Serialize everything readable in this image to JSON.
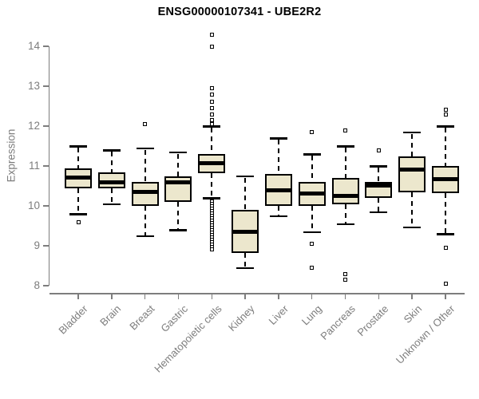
{
  "figure": {
    "kind": "boxplot"
  },
  "chart_data": {
    "type": "box",
    "title": "ENSG00000107341 - UBE2R2",
    "xlabel": "",
    "ylabel": "Expression",
    "ylim": [
      8,
      14.5
    ],
    "yticks": [
      8,
      9,
      10,
      11,
      12,
      13,
      14
    ],
    "grid": false,
    "legend": "none",
    "box_fill": "#ECE7CD",
    "box_stroke": "#000000",
    "axis_color": "#7d7d7d",
    "title_color": "#000000",
    "categories": [
      "Bladder",
      "Brain",
      "Breast",
      "Gastric",
      "Hematopoietic cells",
      "Kidney",
      "Liver",
      "Lung",
      "Pancreas",
      "Prostate",
      "Skin",
      "Unknown / Other"
    ],
    "series": [
      {
        "category": "Bladder",
        "low": 9.8,
        "q1": 10.45,
        "median": 10.72,
        "q3": 10.95,
        "high": 11.5,
        "outliers": [
          9.6
        ]
      },
      {
        "category": "Brain",
        "low": 10.05,
        "q1": 10.45,
        "median": 10.6,
        "q3": 10.85,
        "high": 11.4,
        "outliers": []
      },
      {
        "category": "Breast",
        "low": 9.25,
        "q1": 10.0,
        "median": 10.35,
        "q3": 10.6,
        "high": 11.45,
        "outliers": [
          12.05
        ]
      },
      {
        "category": "Gastric",
        "low": 9.4,
        "q1": 10.1,
        "median": 10.6,
        "q3": 10.75,
        "high": 11.35,
        "outliers": []
      },
      {
        "category": "Hematopoietic cells",
        "low": 10.2,
        "q1": 10.82,
        "median": 11.08,
        "q3": 11.3,
        "high": 12.0,
        "outliers": [
          14.3,
          14.0,
          12.95,
          12.8,
          12.62,
          12.46,
          12.3,
          12.16,
          12.05,
          10.12,
          10.06,
          10.0,
          9.94,
          9.88,
          9.82,
          9.76,
          9.7,
          9.64,
          9.58,
          9.52,
          9.46,
          9.4,
          9.34,
          9.28,
          9.22,
          9.16,
          9.1,
          9.04,
          8.98,
          8.92
        ]
      },
      {
        "category": "Kidney",
        "low": 8.45,
        "q1": 8.82,
        "median": 9.35,
        "q3": 9.9,
        "high": 10.75,
        "outliers": []
      },
      {
        "category": "Liver",
        "low": 9.75,
        "q1": 10.0,
        "median": 10.4,
        "q3": 10.8,
        "high": 11.7,
        "outliers": []
      },
      {
        "category": "Lung",
        "low": 9.35,
        "q1": 10.0,
        "median": 10.32,
        "q3": 10.6,
        "high": 11.3,
        "outliers": [
          11.85,
          9.05,
          8.45
        ]
      },
      {
        "category": "Pancreas",
        "low": 9.55,
        "q1": 10.05,
        "median": 10.25,
        "q3": 10.7,
        "high": 11.5,
        "outliers": [
          11.9,
          8.3,
          8.15
        ]
      },
      {
        "category": "Prostate",
        "low": 9.85,
        "q1": 10.2,
        "median": 10.52,
        "q3": 10.6,
        "high": 11.0,
        "outliers": [
          11.4
        ]
      },
      {
        "category": "Skin",
        "low": 9.47,
        "q1": 10.35,
        "median": 10.92,
        "q3": 11.25,
        "high": 11.85,
        "outliers": []
      },
      {
        "category": "Unknown / Other",
        "low": 9.3,
        "q1": 10.32,
        "median": 10.67,
        "q3": 11.0,
        "high": 12.0,
        "outliers": [
          12.42,
          12.3,
          8.95,
          8.05
        ]
      }
    ]
  }
}
